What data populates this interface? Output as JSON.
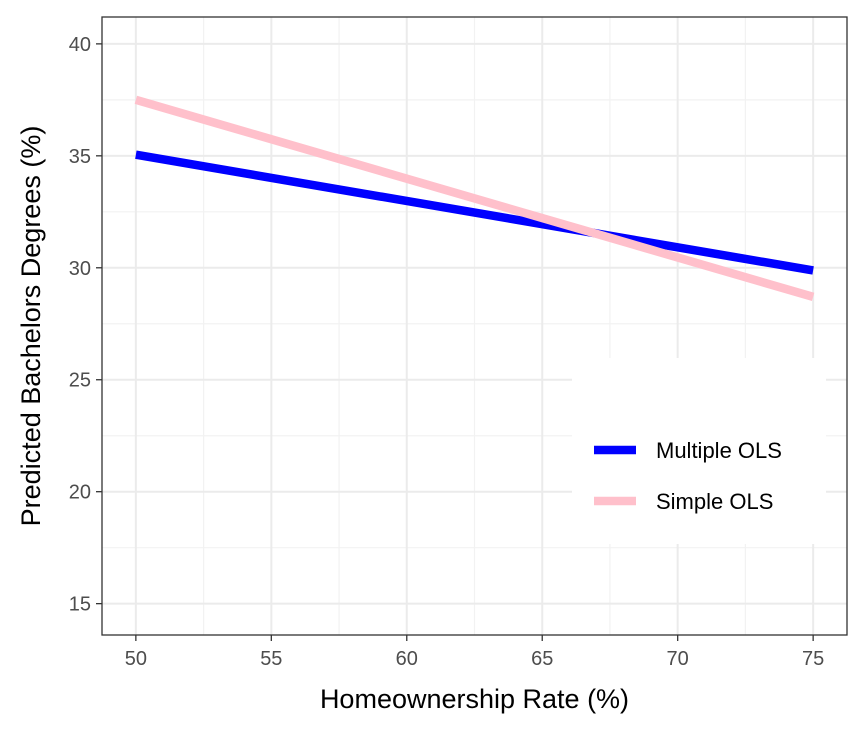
{
  "chart_data": {
    "type": "line",
    "xlabel": "Homeownership Rate (%)",
    "ylabel": "Predicted Bachelors Degrees (%)",
    "xlim": [
      48.75,
      76.25
    ],
    "ylim": [
      13.6,
      41.2
    ],
    "x_ticks": [
      50,
      55,
      60,
      65,
      70,
      75
    ],
    "y_ticks": [
      15,
      20,
      25,
      30,
      35,
      40
    ],
    "grid": true,
    "legend_position": "right",
    "series": [
      {
        "name": "Multiple OLS",
        "color": "#0000ff",
        "x": [
          50,
          75
        ],
        "y": [
          35.05,
          29.88
        ]
      },
      {
        "name": "Simple OLS",
        "color": "#ffc0cb",
        "x": [
          50,
          75
        ],
        "y": [
          37.5,
          28.7
        ]
      }
    ]
  }
}
